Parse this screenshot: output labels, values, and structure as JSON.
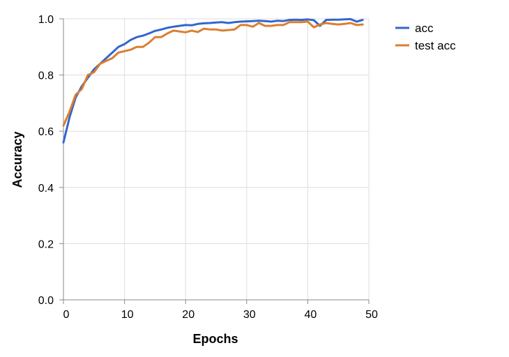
{
  "chart_data": {
    "type": "line",
    "title": "",
    "xlabel": "Epochs",
    "ylabel": "Accuracy",
    "xlim": [
      0,
      50
    ],
    "ylim": [
      0,
      1
    ],
    "x_ticks": [
      "0",
      "10",
      "20",
      "30",
      "40",
      "50"
    ],
    "y_ticks": [
      "0.0",
      "0.2",
      "0.4",
      "0.6",
      "0.8",
      "1.0"
    ],
    "grid": true,
    "legend_position": "top-right",
    "x": [
      0,
      1,
      2,
      3,
      4,
      5,
      6,
      7,
      8,
      9,
      10,
      11,
      12,
      13,
      14,
      15,
      16,
      17,
      18,
      19,
      20,
      21,
      22,
      23,
      24,
      25,
      26,
      27,
      28,
      29,
      30,
      31,
      32,
      33,
      34,
      35,
      36,
      37,
      38,
      39,
      40,
      41,
      42,
      43,
      44,
      45,
      46,
      47,
      48,
      49
    ],
    "series": [
      {
        "name": "acc",
        "color": "#3366cc",
        "values": [
          0.56,
          0.65,
          0.72,
          0.76,
          0.79,
          0.82,
          0.84,
          0.86,
          0.88,
          0.9,
          0.91,
          0.925,
          0.935,
          0.94,
          0.948,
          0.957,
          0.962,
          0.968,
          0.972,
          0.975,
          0.978,
          0.977,
          0.982,
          0.984,
          0.985,
          0.987,
          0.988,
          0.985,
          0.988,
          0.99,
          0.991,
          0.992,
          0.993,
          0.992,
          0.99,
          0.993,
          0.992,
          0.996,
          0.997,
          0.996,
          0.998,
          0.995,
          0.975,
          0.996,
          0.997,
          0.997,
          0.998,
          0.999,
          0.99,
          0.996
        ]
      },
      {
        "name": "test acc",
        "color": "#dc7e2e",
        "values": [
          0.62,
          0.67,
          0.73,
          0.75,
          0.8,
          0.81,
          0.84,
          0.85,
          0.86,
          0.88,
          0.885,
          0.89,
          0.9,
          0.9,
          0.915,
          0.935,
          0.935,
          0.948,
          0.958,
          0.955,
          0.952,
          0.958,
          0.953,
          0.965,
          0.962,
          0.962,
          0.958,
          0.96,
          0.962,
          0.978,
          0.978,
          0.972,
          0.985,
          0.975,
          0.975,
          0.978,
          0.978,
          0.988,
          0.988,
          0.988,
          0.99,
          0.97,
          0.98,
          0.985,
          0.982,
          0.98,
          0.982,
          0.985,
          0.978,
          0.98
        ]
      }
    ]
  }
}
